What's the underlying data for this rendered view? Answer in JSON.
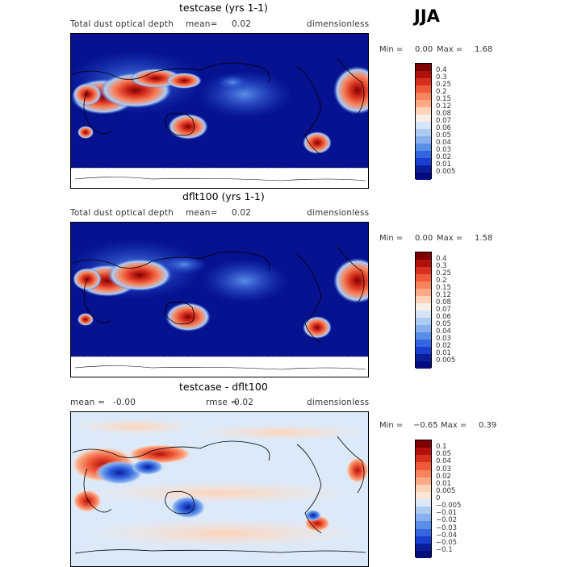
{
  "season": "JJA",
  "panels": [
    {
      "title": "testcase (yrs 1-1)",
      "left_label": "Total dust optical depth",
      "mean_label": "mean=",
      "mean_value": "0.02",
      "units": "dimensionless",
      "min_label": "Min =",
      "min_value": "0.00",
      "max_label": "Max =",
      "max_value": "1.68",
      "colorbar_labels": [
        "0.4",
        "0.3",
        "0.25",
        "0.2",
        "0.15",
        "0.12",
        "0.08",
        "0.07",
        "0.06",
        "0.05",
        "0.04",
        "0.03",
        "0.02",
        "0.01",
        "0.005"
      ]
    },
    {
      "title": "dflt100 (yrs 1-1)",
      "left_label": "Total dust optical depth",
      "mean_label": "mean=",
      "mean_value": "0.02",
      "units": "dimensionless",
      "min_label": "Min =",
      "min_value": "0.00",
      "max_label": "Max =",
      "max_value": "1.58",
      "colorbar_labels": [
        "0.4",
        "0.3",
        "0.25",
        "0.2",
        "0.15",
        "0.12",
        "0.08",
        "0.07",
        "0.06",
        "0.05",
        "0.04",
        "0.03",
        "0.02",
        "0.01",
        "0.005"
      ]
    },
    {
      "title": "testcase - dflt100",
      "left_label": "mean =",
      "mean_label": "-0.00",
      "mean_value": "",
      "rmse_label": "rmse =",
      "rmse_value": "0.02",
      "units": "dimensionless",
      "min_label": "Min =",
      "min_value": "−0.65",
      "max_label": "Max =",
      "max_value": "0.39",
      "colorbar_labels": [
        "0.1",
        "0.05",
        "0.04",
        "0.03",
        "0.02",
        "0.01",
        "0.005",
        "0",
        "−0.005",
        "−0.01",
        "−0.02",
        "−0.03",
        "−0.04",
        "−0.05",
        "−0.1"
      ]
    }
  ],
  "colors": {
    "abs_scale": [
      "#7f0000",
      "#b2100b",
      "#d7301f",
      "#ef5a3a",
      "#f7845c",
      "#fbaa85",
      "#fdd3b8",
      "#f7eee7",
      "#d5e4f7",
      "#aecbf2",
      "#88b0ee",
      "#5a8ee8",
      "#3366e0",
      "#1a3fd0",
      "#0a1e9a",
      "#040b7e"
    ],
    "diff_scale": [
      "#7f0000",
      "#b2100b",
      "#d7301f",
      "#ef5a3a",
      "#f7845c",
      "#fbaa85",
      "#fdd3b8",
      "#fde6d6",
      "#d9e8fa",
      "#aecbf2",
      "#88b0ee",
      "#5a8ee8",
      "#3366e0",
      "#1a3fd0",
      "#0a1e9a",
      "#040b7e"
    ],
    "ocean_abs": "#06128f",
    "ocean_diff": "#dbe9f9"
  },
  "chart_data": [
    {
      "type": "heatmap",
      "title": "testcase (yrs 1-1)",
      "variable": "Total dust optical depth",
      "season": "JJA",
      "units": "dimensionless",
      "mean": 0.02,
      "min": 0.0,
      "max": 1.68,
      "levels": [
        0.005,
        0.01,
        0.02,
        0.03,
        0.04,
        0.05,
        0.06,
        0.07,
        0.08,
        0.12,
        0.15,
        0.2,
        0.25,
        0.3,
        0.4
      ]
    },
    {
      "type": "heatmap",
      "title": "dflt100 (yrs 1-1)",
      "variable": "Total dust optical depth",
      "season": "JJA",
      "units": "dimensionless",
      "mean": 0.02,
      "min": 0.0,
      "max": 1.58,
      "levels": [
        0.005,
        0.01,
        0.02,
        0.03,
        0.04,
        0.05,
        0.06,
        0.07,
        0.08,
        0.12,
        0.15,
        0.2,
        0.25,
        0.3,
        0.4
      ]
    },
    {
      "type": "heatmap",
      "title": "testcase - dflt100",
      "season": "JJA",
      "units": "dimensionless",
      "mean": -0.0,
      "rmse": 0.02,
      "min": -0.65,
      "max": 0.39,
      "levels": [
        -0.1,
        -0.05,
        -0.04,
        -0.03,
        -0.02,
        -0.01,
        -0.005,
        0,
        0.005,
        0.01,
        0.02,
        0.03,
        0.04,
        0.05,
        0.1
      ]
    }
  ]
}
